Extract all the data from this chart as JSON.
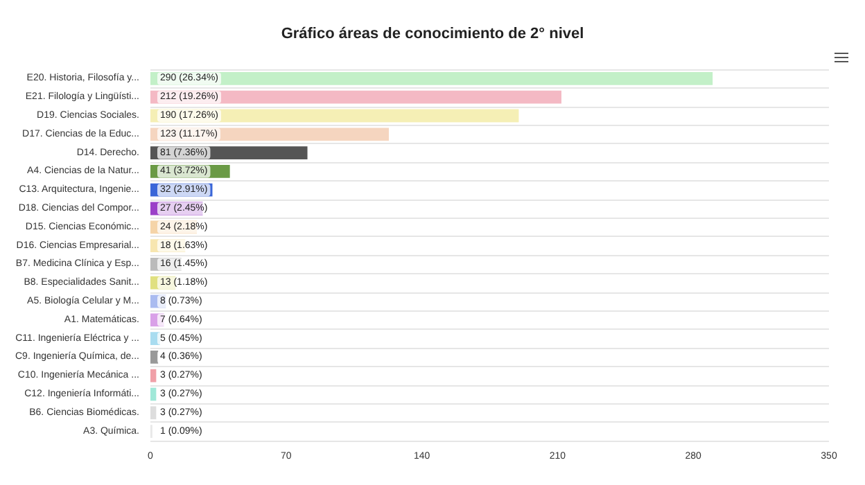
{
  "chart_data": {
    "type": "bar",
    "orientation": "horizontal",
    "title": "Gráfico áreas de conocimiento de 2° nivel",
    "categories": [
      "E20. Historia, Filosofía y...",
      "E21. Filología y Lingüísti...",
      "D19. Ciencias Sociales.",
      "D17. Ciencias de la Educ...",
      "D14. Derecho.",
      "A4. Ciencias de la Natur...",
      "C13. Arquitectura, Ingenie...",
      "D18. Ciencias del Compor...",
      "D15. Ciencias Económic...",
      "D16. Ciencias Empresarial...",
      "B7. Medicina Clínica y Esp...",
      "B8. Especialidades Sanit...",
      "A5. Biología Celular y M...",
      "A1. Matemáticas.",
      "C11. Ingeniería Eléctrica y ...",
      "C9. Ingeniería Química, de...",
      "C10. Ingeniería Mecánica ...",
      "C12. Ingeniería Informáti...",
      "B6. Ciencias Biomédicas.",
      "A3. Química."
    ],
    "values": [
      290,
      212,
      190,
      123,
      81,
      41,
      32,
      27,
      24,
      18,
      16,
      13,
      8,
      7,
      5,
      4,
      3,
      3,
      3,
      1
    ],
    "value_labels": [
      "290 (26.34%)",
      "212 (19.26%)",
      "190 (17.26%)",
      "123 (11.17%)",
      "81 (7.36%)",
      "41 (3.72%)",
      "32 (2.91%)",
      "27 (2.45%)",
      "24 (2.18%)",
      "18 (1.63%)",
      "16 (1.45%)",
      "13 (1.18%)",
      "8 (0.73%)",
      "7 (0.64%)",
      "5 (0.45%)",
      "4 (0.36%)",
      "3 (0.27%)",
      "3 (0.27%)",
      "3 (0.27%)",
      "1 (0.09%)"
    ],
    "colors": [
      "#c3f0c8",
      "#f4b9c4",
      "#f5efb5",
      "#f5d5bf",
      "#555555",
      "#6a9a45",
      "#3a66d8",
      "#9b40c8",
      "#f5d4a8",
      "#f7e6b0",
      "#bbbbbb",
      "#e0e080",
      "#aabbf0",
      "#d9a0e8",
      "#a8dcf0",
      "#999999",
      "#f0a0a8",
      "#a0e8d8",
      "#dddddd",
      "#e8e8e8"
    ],
    "xlim": [
      0,
      350
    ],
    "xticks": [
      0,
      70,
      140,
      210,
      280,
      350
    ],
    "grid": "y"
  }
}
